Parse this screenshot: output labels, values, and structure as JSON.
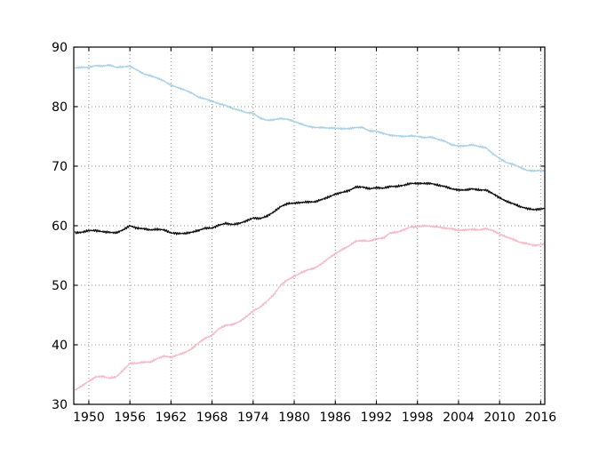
{
  "figure": {
    "background": "#ffffff",
    "spine_color": "#000000",
    "grid_color": "#8f8f8f",
    "tick_label_color": "#000000"
  },
  "chart_data": {
    "type": "line",
    "title": "",
    "xlabel": "",
    "ylabel": "",
    "legend": "none",
    "grid": "dotted",
    "xlim": [
      1947.8,
      2016.6
    ],
    "ylim": [
      30,
      90
    ],
    "x_tick_labels": [
      "1950",
      "1956",
      "1962",
      "1968",
      "1974",
      "1980",
      "1986",
      "1992",
      "1998",
      "2004",
      "2010",
      "2016"
    ],
    "x_tick_values": [
      1950,
      1956,
      1962,
      1968,
      1974,
      1980,
      1986,
      1992,
      1998,
      2004,
      2010,
      2016
    ],
    "y_tick_labels": [
      "30",
      "40",
      "50",
      "60",
      "70",
      "80",
      "90"
    ],
    "y_tick_values": [
      30,
      40,
      50,
      60,
      70,
      80,
      90
    ],
    "x": [
      1948,
      1949,
      1950,
      1951,
      1952,
      1953,
      1954,
      1955,
      1956,
      1957,
      1958,
      1959,
      1960,
      1961,
      1962,
      1963,
      1964,
      1965,
      1966,
      1967,
      1968,
      1969,
      1970,
      1971,
      1972,
      1973,
      1974,
      1975,
      1976,
      1977,
      1978,
      1979,
      1980,
      1981,
      1982,
      1983,
      1984,
      1985,
      1986,
      1987,
      1988,
      1989,
      1990,
      1991,
      1992,
      1993,
      1994,
      1995,
      1996,
      1997,
      1998,
      1999,
      2000,
      2001,
      2002,
      2003,
      2004,
      2005,
      2006,
      2007,
      2008,
      2009,
      2010,
      2011,
      2012,
      2013,
      2014,
      2015,
      2016,
      2016.5
    ],
    "series": [
      {
        "name": "light-blue-line",
        "color": "#a9d1e5",
        "noise": 0.18,
        "values": [
          86.5,
          86.6,
          86.6,
          86.9,
          86.8,
          87.0,
          86.6,
          86.7,
          86.8,
          86.2,
          85.5,
          85.2,
          84.8,
          84.3,
          83.6,
          83.2,
          82.8,
          82.3,
          81.6,
          81.3,
          80.9,
          80.5,
          80.2,
          79.7,
          79.4,
          79.0,
          78.9,
          78.1,
          77.7,
          77.8,
          78.0,
          77.9,
          77.5,
          77.1,
          76.7,
          76.5,
          76.5,
          76.4,
          76.4,
          76.3,
          76.3,
          76.5,
          76.5,
          75.9,
          75.9,
          75.5,
          75.2,
          75.1,
          75.0,
          75.1,
          75.0,
          74.8,
          74.9,
          74.5,
          74.2,
          73.6,
          73.4,
          73.4,
          73.6,
          73.3,
          73.1,
          72.1,
          71.3,
          70.6,
          70.3,
          69.8,
          69.3,
          69.2,
          69.3,
          69.2
        ]
      },
      {
        "name": "black-line",
        "color": "#121212",
        "noise": 0.22,
        "values": [
          58.8,
          58.9,
          59.2,
          59.2,
          59.0,
          58.9,
          58.8,
          59.3,
          60.0,
          59.6,
          59.5,
          59.3,
          59.4,
          59.3,
          58.8,
          58.7,
          58.7,
          58.9,
          59.2,
          59.6,
          59.6,
          60.1,
          60.4,
          60.2,
          60.4,
          60.8,
          61.3,
          61.2,
          61.6,
          62.3,
          63.2,
          63.7,
          63.8,
          63.9,
          64.0,
          64.0,
          64.4,
          64.8,
          65.3,
          65.6,
          65.9,
          66.5,
          66.5,
          66.2,
          66.4,
          66.3,
          66.6,
          66.6,
          66.8,
          67.1,
          67.1,
          67.1,
          67.1,
          66.8,
          66.6,
          66.2,
          66.0,
          66.0,
          66.2,
          66.0,
          66.0,
          65.4,
          64.7,
          64.1,
          63.7,
          63.2,
          62.9,
          62.7,
          62.8,
          62.9
        ]
      },
      {
        "name": "pink-line",
        "color": "#f6b8c6",
        "noise": 0.2,
        "values": [
          32.4,
          33.1,
          33.9,
          34.6,
          34.7,
          34.4,
          34.6,
          35.7,
          36.9,
          36.9,
          37.1,
          37.1,
          37.7,
          38.1,
          37.9,
          38.3,
          38.7,
          39.3,
          40.3,
          41.1,
          41.6,
          42.7,
          43.3,
          43.4,
          43.9,
          44.7,
          45.7,
          46.3,
          47.3,
          48.4,
          50.0,
          50.9,
          51.5,
          52.1,
          52.6,
          52.9,
          53.6,
          54.5,
          55.3,
          56.0,
          56.6,
          57.4,
          57.5,
          57.4,
          57.8,
          57.9,
          58.8,
          58.9,
          59.3,
          59.8,
          59.8,
          60.0,
          59.9,
          59.8,
          59.6,
          59.5,
          59.2,
          59.3,
          59.4,
          59.3,
          59.5,
          59.2,
          58.6,
          58.1,
          57.7,
          57.2,
          57.0,
          56.7,
          56.8,
          56.9
        ]
      }
    ]
  }
}
